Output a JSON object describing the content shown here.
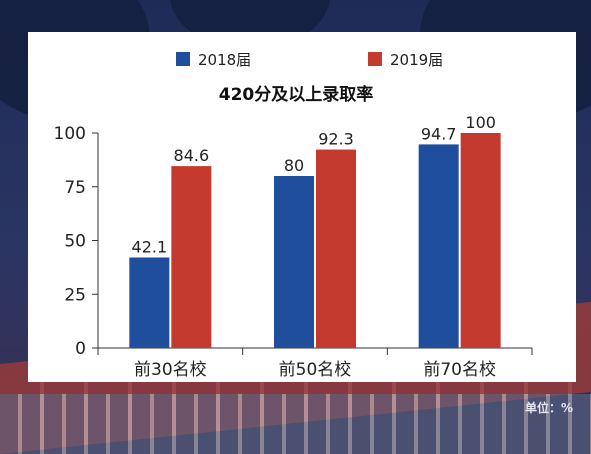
{
  "chart_data": {
    "type": "bar",
    "title": "420分及以上录取率",
    "categories": [
      "前30名校",
      "前50名校",
      "前70名校"
    ],
    "series": [
      {
        "name": "2018届",
        "values": [
          42.1,
          80,
          94.7
        ],
        "labels": [
          "42.1",
          "80",
          "94.7"
        ],
        "color": "#1f4e9c"
      },
      {
        "name": "2019届",
        "values": [
          84.6,
          92.3,
          100
        ],
        "labels": [
          "84.6",
          "92.3",
          "100"
        ],
        "color": "#c43a2f"
      }
    ],
    "ylim": [
      0,
      100
    ],
    "yticks": [
      0,
      25,
      50,
      75,
      100
    ],
    "legend_position": "top-center",
    "grid": false,
    "xlabel": "",
    "ylabel": ""
  },
  "unit_label": "单位：%"
}
